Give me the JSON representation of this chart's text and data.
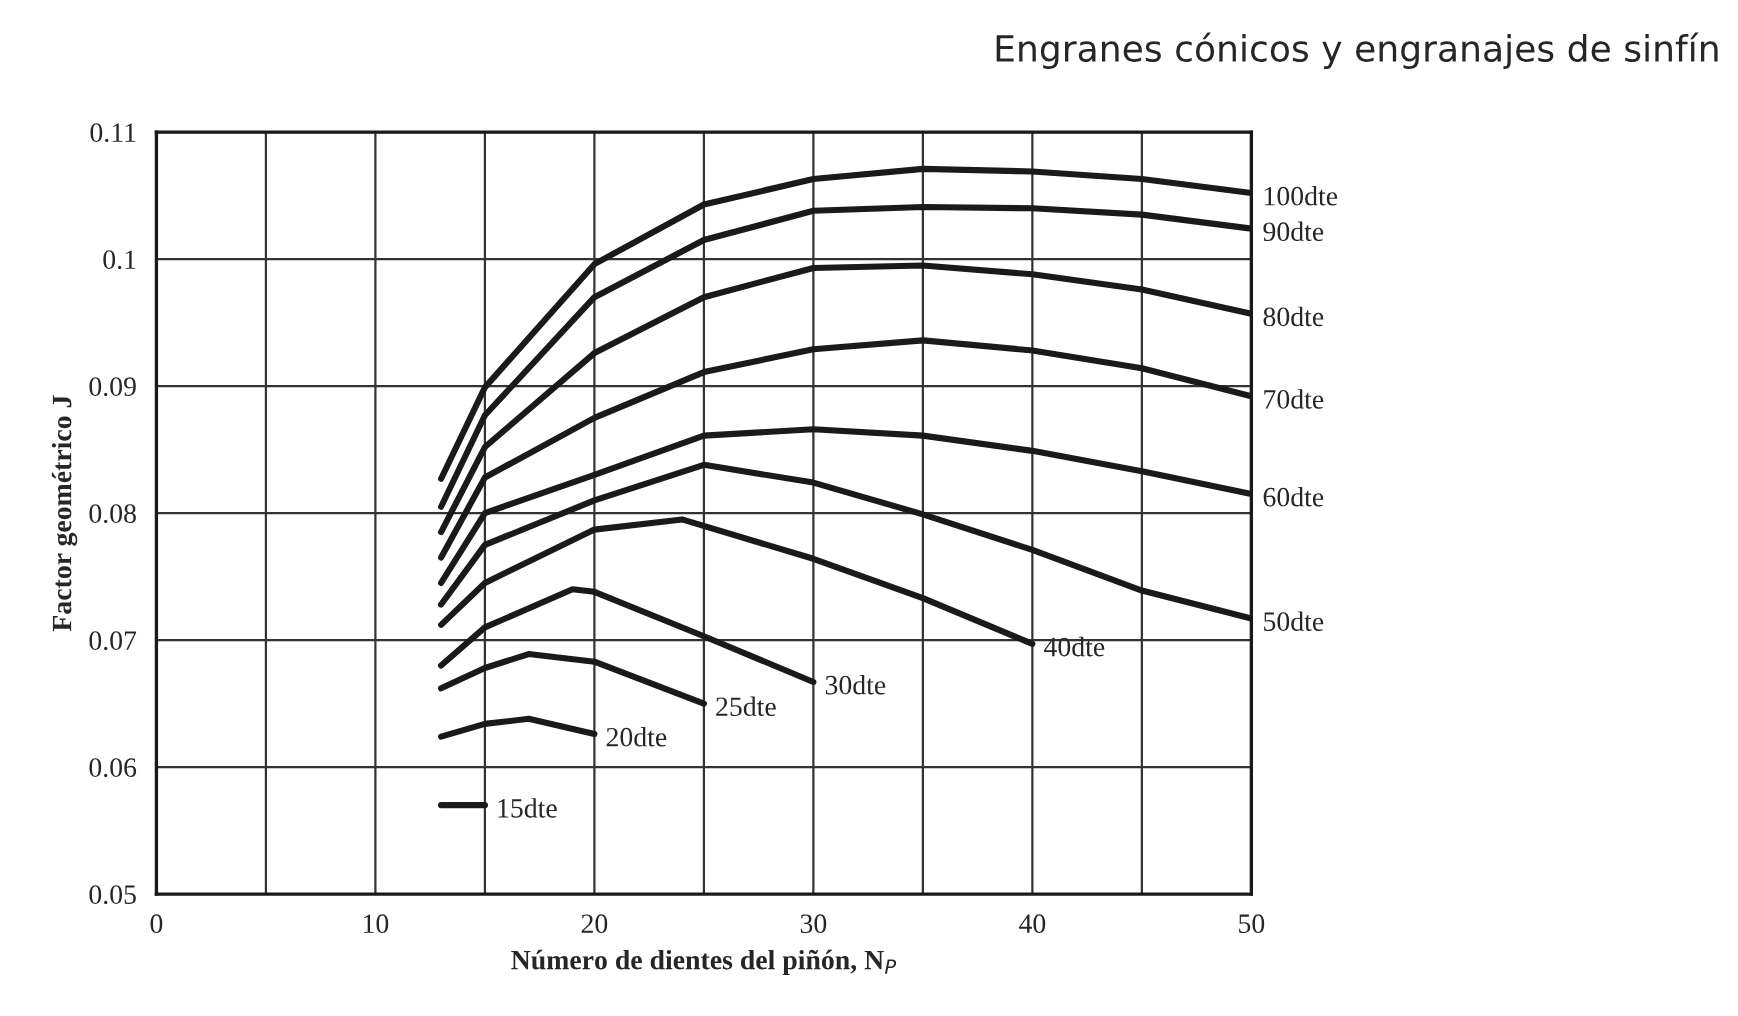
{
  "chart_data": {
    "type": "line",
    "title": "Engranes cónicos y engranajes de sinfín",
    "xlabel": "Número de dientes del piñón, N$_{P}$",
    "ylabel": "Factor geométrico J",
    "xlim": [
      0,
      50
    ],
    "ylim": [
      0.05,
      0.11
    ],
    "xticks": [
      0,
      {
        "value": 5,
        "label": null
      },
      10,
      {
        "value": 15,
        "label": null
      },
      20,
      {
        "value": 25,
        "label": null
      },
      30,
      {
        "value": 35,
        "label": null
      },
      40,
      {
        "value": 45,
        "label": null
      },
      50
    ],
    "yticks": [
      0.05,
      0.06,
      0.07,
      0.08,
      0.09,
      0.1,
      0.11
    ],
    "grid": true,
    "legend": false,
    "marker": "none",
    "line_style": "solid",
    "series": [
      {
        "name": "100dte",
        "color": "#1a1a1a",
        "x": [
          13,
          15,
          20,
          25,
          30,
          35,
          40,
          45,
          50
        ],
        "values": [
          0.0827,
          0.0899,
          0.0996,
          0.1043,
          0.1063,
          0.1071,
          0.1069,
          0.1063,
          0.1052
        ]
      },
      {
        "name": "90dte",
        "color": "#1a1a1a",
        "x": [
          13,
          15,
          20,
          25,
          30,
          35,
          40,
          45,
          50
        ],
        "values": [
          0.0805,
          0.0877,
          0.097,
          0.1015,
          0.1038,
          0.1041,
          0.104,
          0.1035,
          0.1024
        ]
      },
      {
        "name": "80dte",
        "color": "#1a1a1a",
        "x": [
          13,
          15,
          20,
          25,
          30,
          35,
          40,
          45,
          50
        ],
        "values": [
          0.0785,
          0.0852,
          0.0926,
          0.097,
          0.0993,
          0.0995,
          0.0988,
          0.0976,
          0.0957
        ]
      },
      {
        "name": "70dte",
        "color": "#1a1a1a",
        "x": [
          13,
          15,
          20,
          25,
          30,
          35,
          40,
          45,
          50
        ],
        "values": [
          0.0765,
          0.0828,
          0.0875,
          0.0911,
          0.0929,
          0.0936,
          0.0928,
          0.0914,
          0.0892
        ]
      },
      {
        "name": "60dte",
        "color": "#1a1a1a",
        "x": [
          13,
          15,
          20,
          25,
          30,
          35,
          40,
          45,
          50
        ],
        "values": [
          0.0745,
          0.08,
          0.083,
          0.0861,
          0.0866,
          0.0861,
          0.0849,
          0.0833,
          0.0815
        ]
      },
      {
        "name": "50dte",
        "color": "#1a1a1a",
        "x": [
          13,
          15,
          20,
          25,
          30,
          35,
          40,
          45,
          50
        ],
        "values": [
          0.0728,
          0.0775,
          0.081,
          0.0838,
          0.0824,
          0.0799,
          0.0771,
          0.0739,
          0.0717
        ]
      },
      {
        "name": "40dte",
        "color": "#1a1a1a",
        "x": [
          13,
          15,
          20,
          24,
          30,
          35,
          40
        ],
        "values": [
          0.0712,
          0.0745,
          0.0787,
          0.0795,
          0.0764,
          0.0733,
          0.0697
        ]
      },
      {
        "name": "30dte",
        "color": "#1a1a1a",
        "x": [
          13,
          15,
          19,
          20,
          25,
          30
        ],
        "values": [
          0.068,
          0.071,
          0.074,
          0.0738,
          0.0703,
          0.0667
        ]
      },
      {
        "name": "25dte",
        "color": "#1a1a1a",
        "x": [
          13,
          15,
          17,
          20,
          25
        ],
        "values": [
          0.0662,
          0.0678,
          0.0689,
          0.0683,
          0.065
        ]
      },
      {
        "name": "20dte",
        "color": "#1a1a1a",
        "x": [
          13,
          15,
          17,
          20
        ],
        "values": [
          0.0624,
          0.0634,
          0.0638,
          0.0626
        ]
      },
      {
        "name": "15dte",
        "color": "#1a1a1a",
        "x": [
          13,
          15
        ],
        "values": [
          0.057,
          0.057
        ]
      }
    ]
  }
}
